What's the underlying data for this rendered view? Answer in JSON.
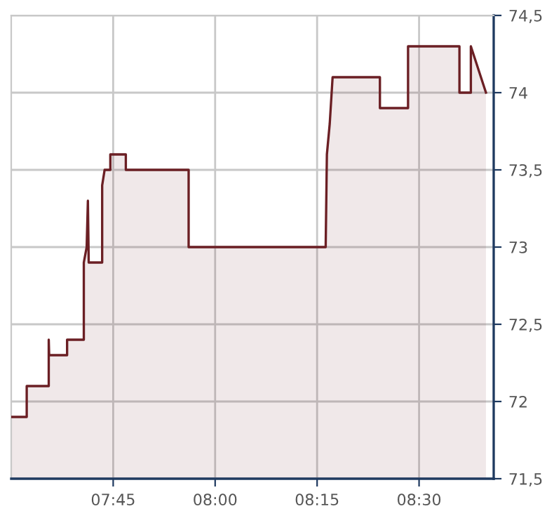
{
  "chart_data": {
    "type": "area",
    "x": [
      7.5,
      7.538,
      7.538,
      7.592,
      7.592,
      7.593,
      7.637,
      7.637,
      7.678,
      7.678,
      7.685,
      7.688,
      7.69,
      7.723,
      7.723,
      7.729,
      7.743,
      7.743,
      7.781,
      7.781,
      7.935,
      7.935,
      8.271,
      8.274,
      8.281,
      8.288,
      8.404,
      8.404,
      8.473,
      8.473,
      8.599,
      8.599,
      8.627,
      8.627,
      8.664
    ],
    "series": [
      {
        "color": "#6b1f24",
        "values": [
          71.9,
          71.9,
          72.1,
          72.1,
          72.4,
          72.3,
          72.3,
          72.4,
          72.4,
          72.9,
          73.0,
          73.3,
          72.9,
          72.9,
          73.4,
          73.5,
          73.5,
          73.6,
          73.6,
          73.5,
          73.5,
          73.0,
          73.0,
          73.6,
          73.8,
          74.1,
          74.1,
          73.9,
          73.9,
          74.3,
          74.3,
          74.0,
          74.0,
          74.3,
          74.0
        ]
      }
    ],
    "xlim": [
      7.5,
      8.683
    ],
    "xticks": [
      {
        "value": 7.75,
        "label": "07:45"
      },
      {
        "value": 8.0,
        "label": "08:00"
      },
      {
        "value": 8.25,
        "label": "08:15"
      },
      {
        "value": 8.5,
        "label": "08:30"
      }
    ],
    "ylim": [
      71.5,
      74.5
    ],
    "yticks": [
      {
        "value": 71.5,
        "label": "71,5"
      },
      72,
      {
        "value": 72.5,
        "label": "72,5"
      },
      73,
      {
        "value": 73.5,
        "label": "73,5"
      },
      74,
      {
        "value": 74.5,
        "label": "74,5"
      }
    ],
    "grid": true
  }
}
